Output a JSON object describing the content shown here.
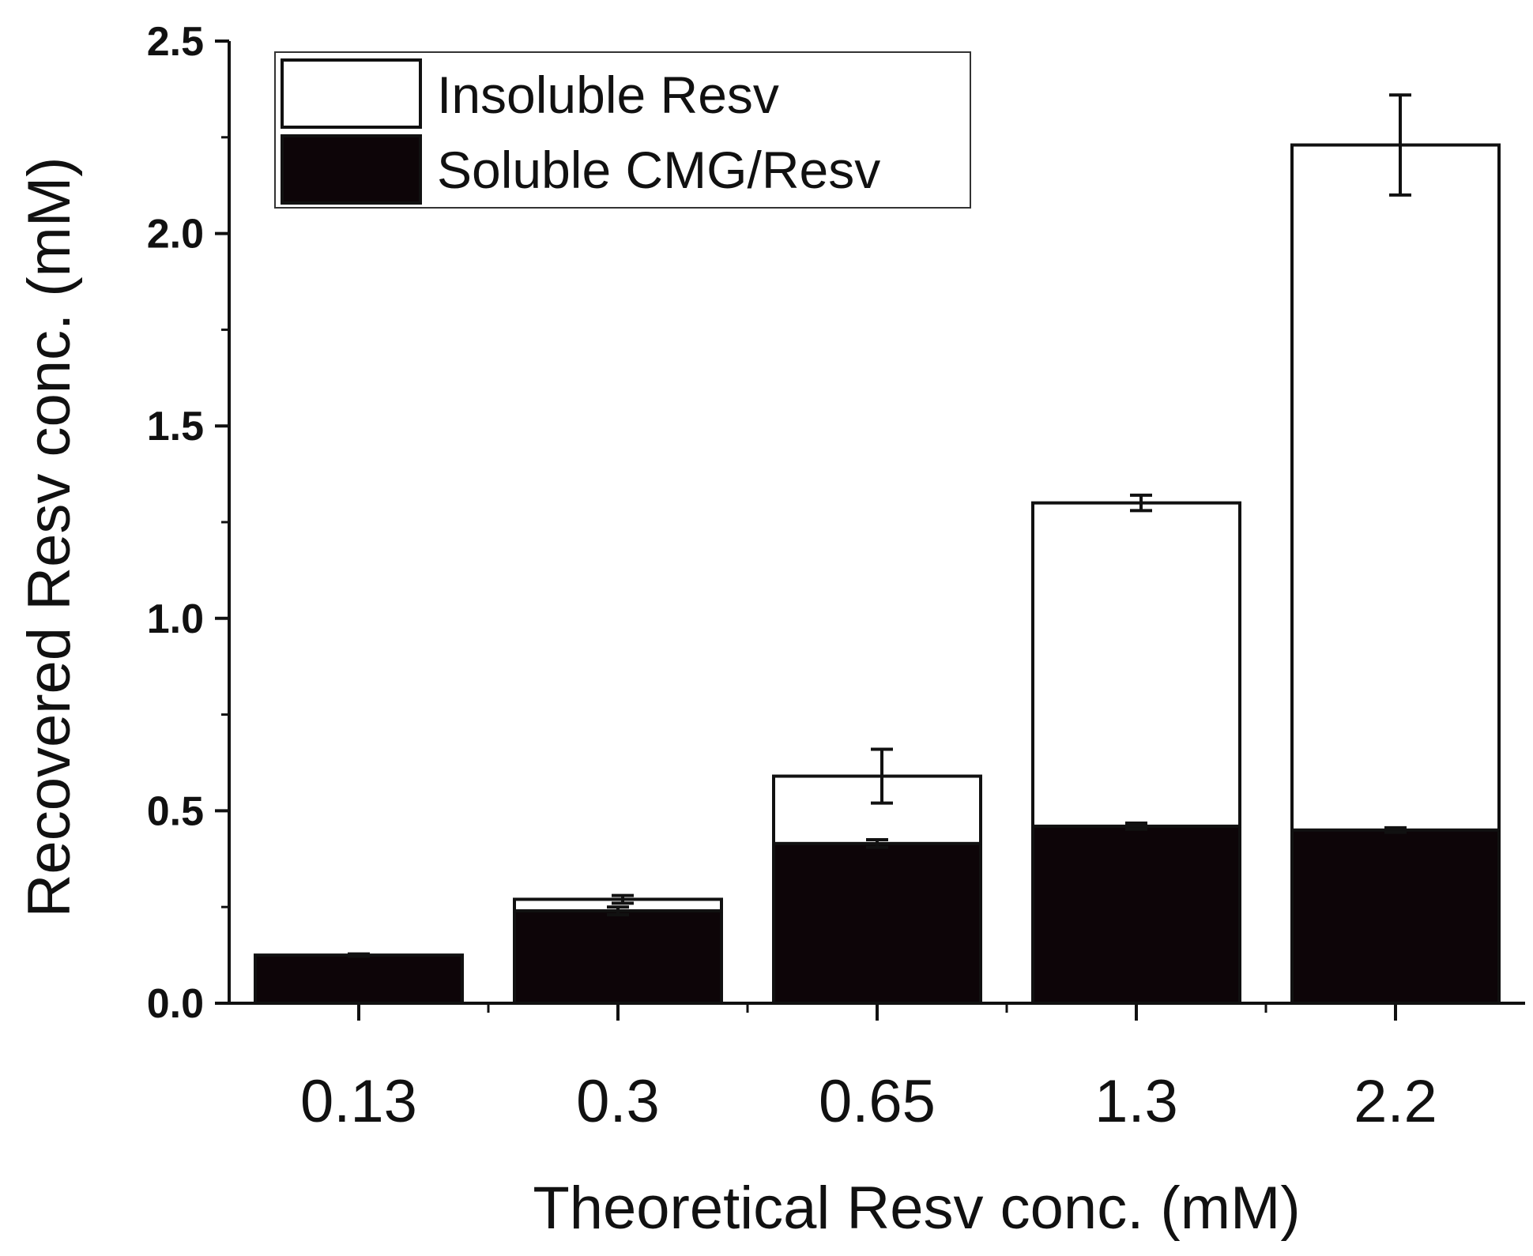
{
  "chart_data": {
    "type": "bar",
    "stacked": true,
    "title": "",
    "xlabel": "Theoretical Resv conc. (mM)",
    "ylabel": "Recovered Resv conc. (mM)",
    "categories": [
      "0.13",
      "0.3",
      "0.65",
      "1.3",
      "2.2"
    ],
    "ylim": [
      0,
      2.5
    ],
    "yticks": [
      "0.0",
      "0.5",
      "1.0",
      "1.5",
      "2.0",
      "2.5"
    ],
    "ytick_values": [
      0,
      0.5,
      1.0,
      1.5,
      2.0,
      2.5
    ],
    "legend_position": "top-left",
    "series": [
      {
        "name": "Soluble CMG/Resv",
        "color": "#0d0508",
        "values": [
          0.125,
          0.24,
          0.415,
          0.46,
          0.45
        ],
        "errors": [
          0.003,
          0.01,
          0.01,
          0.008,
          0.006
        ]
      },
      {
        "name": "Insoluble Resv",
        "color": "#ffffff",
        "values": [
          0.0,
          0.03,
          0.175,
          0.84,
          1.78
        ],
        "errors": [
          0,
          0.01,
          0.07,
          0.02,
          0.13
        ]
      }
    ],
    "totals": [
      0.125,
      0.27,
      0.59,
      1.3,
      2.23
    ]
  }
}
